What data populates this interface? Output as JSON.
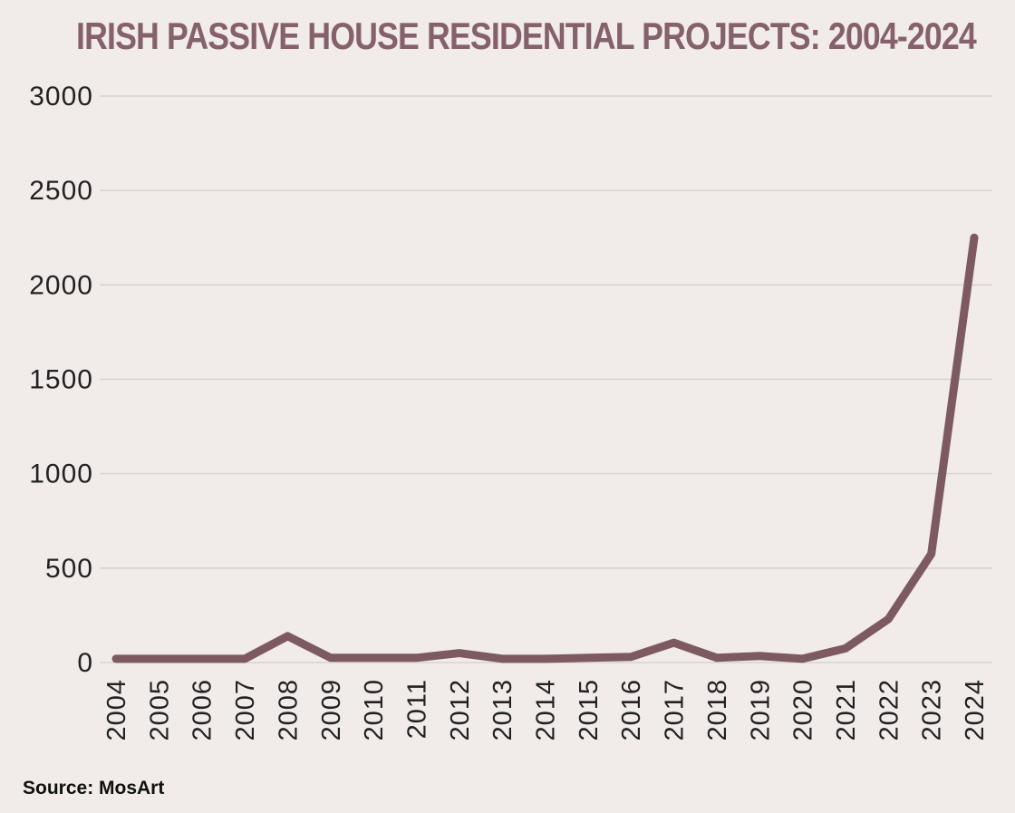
{
  "page": {
    "background_color": "#f1ecea"
  },
  "title": {
    "text": "IRISH PASSIVE HOUSE RESIDENTIAL PROJECTS: 2004-2024",
    "color": "#85616c"
  },
  "source": {
    "text": "Source: MosArt"
  },
  "chart_data": {
    "type": "line",
    "title": "IRISH PASSIVE HOUSE RESIDENTIAL PROJECTS: 2004-2024",
    "categories": [
      "2004",
      "2005",
      "2006",
      "2007",
      "2008",
      "2009",
      "2010",
      "2011",
      "2012",
      "2013",
      "2014",
      "2015",
      "2016",
      "2017",
      "2018",
      "2019",
      "2020",
      "2021",
      "2022",
      "2023",
      "2024"
    ],
    "values": [
      20,
      20,
      20,
      20,
      140,
      25,
      25,
      25,
      50,
      20,
      20,
      25,
      30,
      105,
      25,
      35,
      20,
      75,
      230,
      575,
      2250
    ],
    "xlabel": "",
    "ylabel": "",
    "ylim": [
      0,
      3000
    ],
    "yticks": [
      0,
      500,
      1000,
      1500,
      2000,
      2500,
      3000
    ],
    "grid": true,
    "legend": "none",
    "line_color": "#7d5a5f",
    "line_width": 9,
    "gridline_color": "#d7d2d0",
    "tick_label_color": "#222222",
    "x_tick_rotation_deg": -90
  }
}
